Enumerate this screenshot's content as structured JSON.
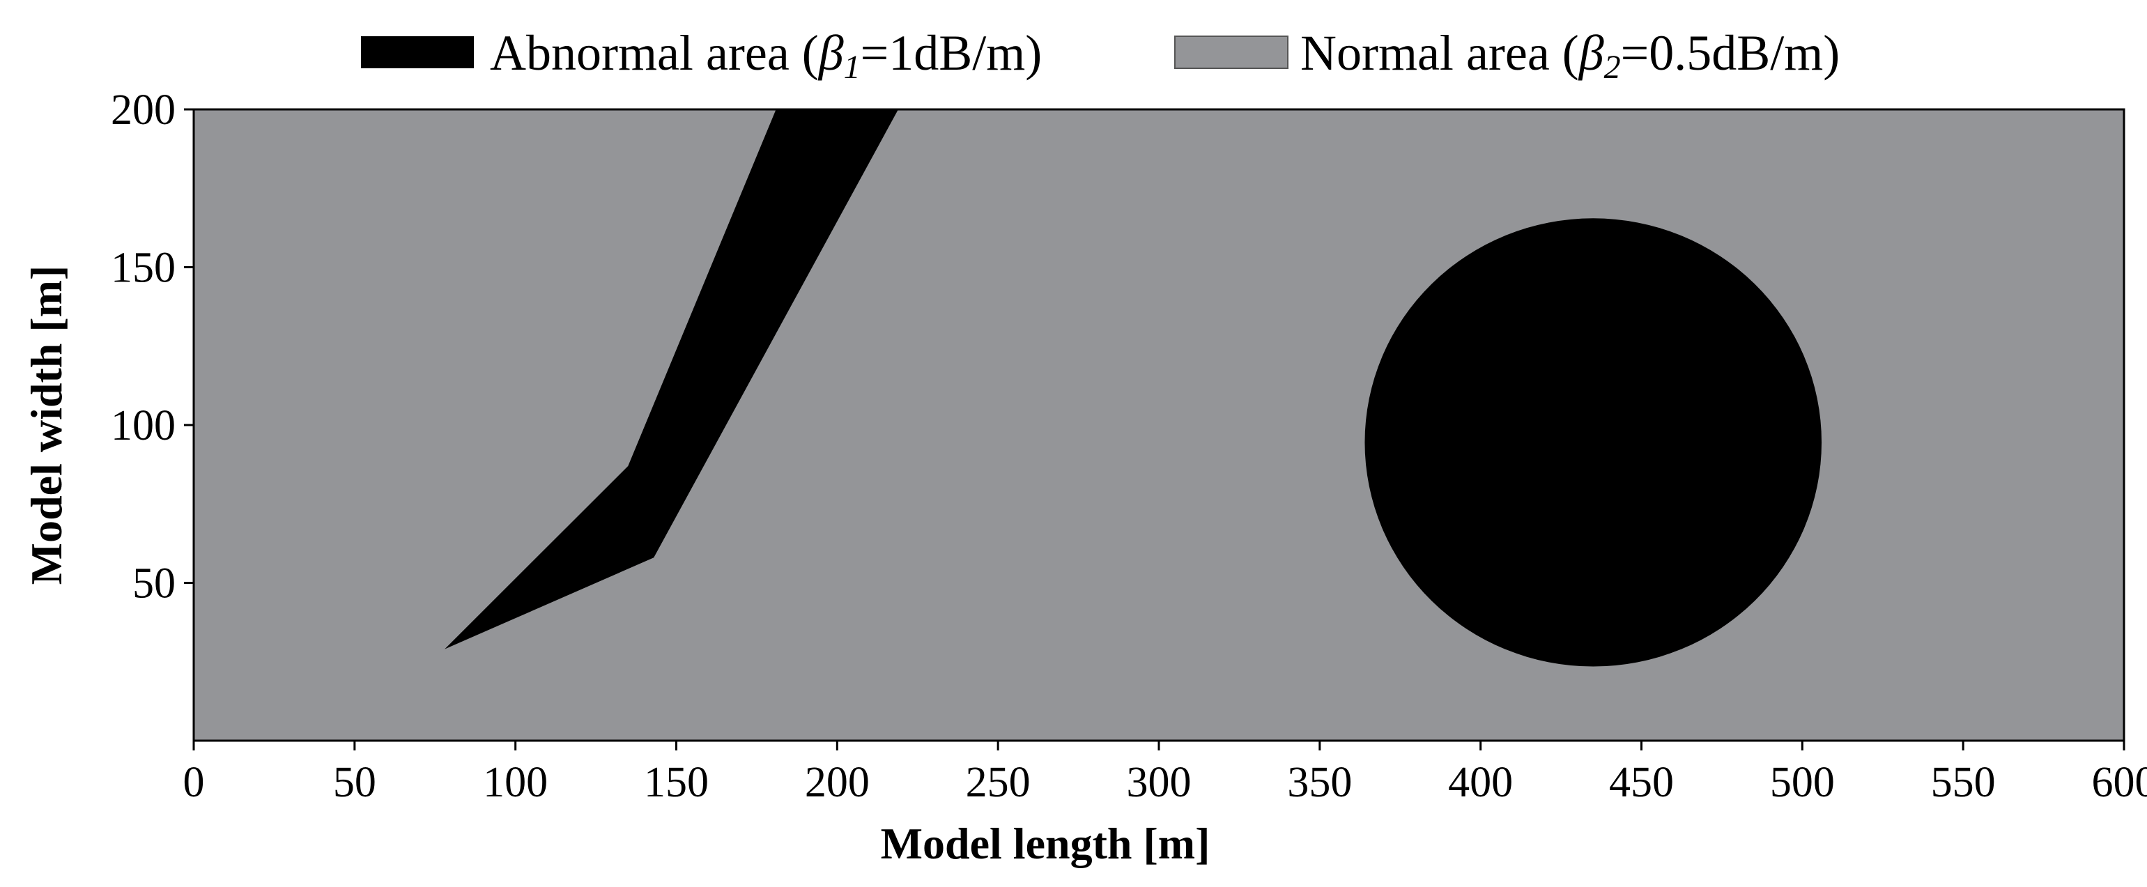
{
  "chart_data": {
    "type": "area",
    "title": "",
    "xlabel": "Model length [m]",
    "ylabel": "Model width [m]",
    "xlim": [
      0,
      600
    ],
    "ylim": [
      0,
      200
    ],
    "x_ticks": [
      0,
      50,
      100,
      150,
      200,
      250,
      300,
      350,
      400,
      450,
      500,
      550,
      600
    ],
    "y_ticks": [
      50,
      100,
      150,
      200
    ],
    "grid": false,
    "legend_position": "top",
    "colors": {
      "abnormal": "#000000",
      "normal": "#949598"
    },
    "legend": [
      {
        "key": "abnormal",
        "prefix": "Abnormal area (",
        "symbol": "β",
        "subscript": "1",
        "suffix": "=1dB/m)"
      },
      {
        "key": "normal",
        "prefix": "Normal area (",
        "symbol": "β",
        "subscript": "2",
        "suffix": "=0.5dB/m)"
      }
    ],
    "regions": [
      {
        "name": "background-normal-area",
        "kind": "rectangle",
        "class": "normal",
        "x_range": [
          0,
          600
        ],
        "y_range": [
          0,
          200
        ]
      },
      {
        "name": "abnormal-fault-zone",
        "kind": "polygon",
        "class": "abnormal",
        "points": [
          [
            78,
            29
          ],
          [
            135,
            87
          ],
          [
            181,
            200
          ],
          [
            219,
            200
          ],
          [
            143,
            58
          ]
        ]
      },
      {
        "name": "abnormal-circular-zone",
        "kind": "circle",
        "class": "abnormal",
        "center": [
          435,
          94.5
        ],
        "radius": 71
      }
    ]
  }
}
